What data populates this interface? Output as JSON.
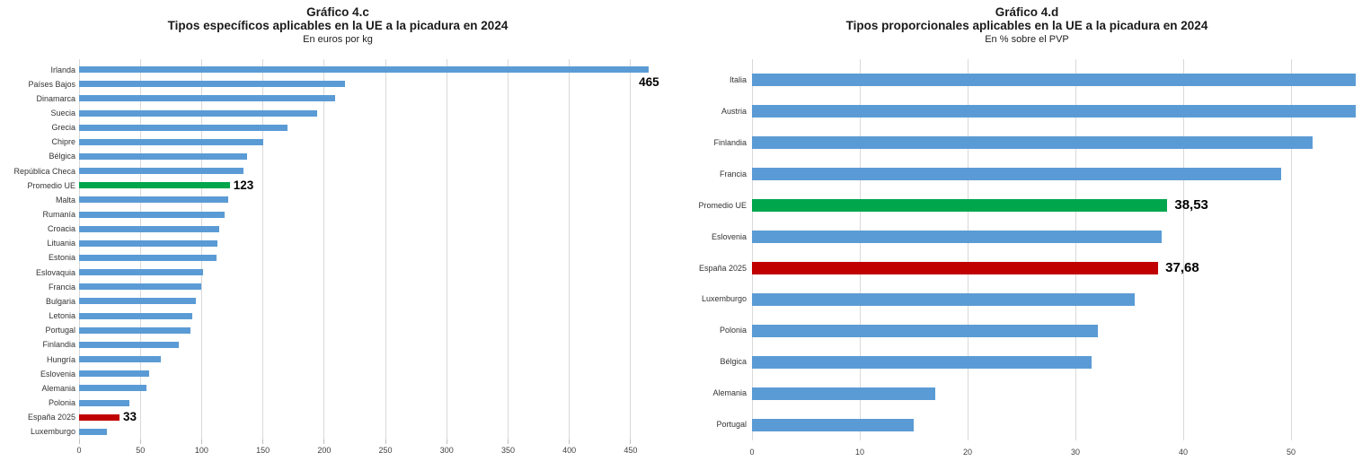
{
  "figure": {
    "background": "#ffffff",
    "accent_blue": "#5b9bd5",
    "accent_green": "#00a64c",
    "accent_red": "#c00000",
    "gridline_color": "#d9d9d9"
  },
  "chart_data": [
    {
      "type": "bar",
      "orientation": "horizontal",
      "title": "Gráfico 4.c",
      "subtitle": "Tipos específicos aplicables en la UE a la picadura en 2024",
      "units": "En euros por kg",
      "legend": "none",
      "grid": "vertical",
      "xlim": [
        0,
        475
      ],
      "xticks": [
        0,
        50,
        100,
        150,
        200,
        250,
        300,
        350,
        400,
        450
      ],
      "categories": [
        "Irlanda",
        "Países Bajos",
        "Dinamarca",
        "Suecia",
        "Grecia",
        "Chipre",
        "Bélgica",
        "República Checa",
        "Promedio UE",
        "Malta",
        "Rumanía",
        "Croacia",
        "Lituania",
        "Estonia",
        "Eslovaquia",
        "Francia",
        "Bulgaria",
        "Letonia",
        "Portugal",
        "Finlandia",
        "Hungría",
        "Eslovenia",
        "Alemania",
        "Polonia",
        "España 2025",
        "Luxemburgo"
      ],
      "values": [
        465,
        217,
        209,
        194,
        170,
        150,
        137,
        134,
        123,
        122,
        119,
        114,
        113,
        112,
        101,
        100,
        95,
        92,
        91,
        81,
        67,
        57,
        55,
        41,
        33,
        23
      ],
      "default_color": "#5b9bd5",
      "colors_by_category": {
        "Promedio UE": "#00a64c",
        "España 2025": "#c00000"
      },
      "data_labels": {
        "Irlanda": "465",
        "Promedio UE": "123",
        "España 2025": "33"
      },
      "data_label_positions": {
        "Irlanda": "below-tip"
      }
    },
    {
      "type": "bar",
      "orientation": "horizontal",
      "title": "Gráfico 4.d",
      "subtitle": "Tipos proporcionales aplicables en la UE a la picadura en 2024",
      "units": "En % sobre el PVP",
      "legend": "none",
      "grid": "vertical",
      "xlim": [
        0,
        56.5
      ],
      "xticks": [
        0,
        10,
        20,
        30,
        40,
        50
      ],
      "categories": [
        "Italia",
        "Austria",
        "Finlandia",
        "Francia",
        "Promedio UE",
        "Eslovenia",
        "España 2025",
        "Luxemburgo",
        "Polonia",
        "Bélgica",
        "Alemania",
        "Portugal"
      ],
      "values": [
        56,
        56,
        52,
        49.1,
        38.53,
        38,
        37.68,
        35.5,
        32.1,
        31.5,
        17,
        15
      ],
      "default_color": "#5b9bd5",
      "colors_by_category": {
        "Promedio UE": "#00a64c",
        "España 2025": "#c00000"
      },
      "data_labels": {
        "Promedio UE": "38,53",
        "España 2025": "37,68"
      },
      "data_label_positions": {}
    }
  ]
}
